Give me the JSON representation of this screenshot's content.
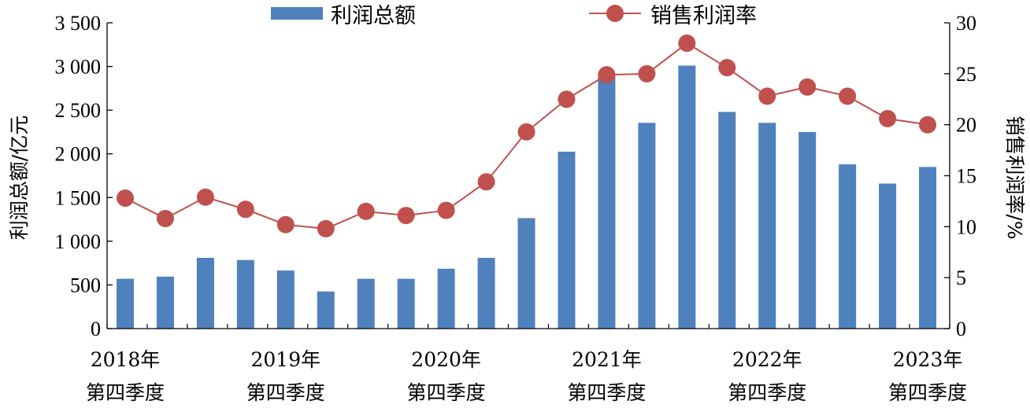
{
  "chart_data": {
    "type": "bar",
    "legend": {
      "placement": "top-center"
    },
    "ylabel_left": "利润总额/亿元",
    "ylabel_right": "销售利润率/%",
    "ylim_left": [
      0,
      3500
    ],
    "yticks_left": [
      "0",
      "500",
      "1 000",
      "1 500",
      "2 000",
      "2 500",
      "3 000",
      "3 500"
    ],
    "ylim_right": [
      0,
      30
    ],
    "yticks_right": [
      "0",
      "5",
      "10",
      "15",
      "20",
      "25",
      "30"
    ],
    "categories": [
      "2018年第四季度",
      "",
      "",
      "",
      "2019年第四季度",
      "",
      "",
      "",
      "2020年第四季度",
      "",
      "",
      "",
      "2021年第四季度",
      "",
      "",
      "",
      "2022年第四季度",
      "",
      "",
      "",
      "2023年第四季度"
    ],
    "x_tick_labels": [
      {
        "index": 0,
        "line1": "2018年",
        "line2": "第四季度"
      },
      {
        "index": 4,
        "line1": "2019年",
        "line2": "第四季度"
      },
      {
        "index": 8,
        "line1": "2020年",
        "line2": "第四季度"
      },
      {
        "index": 12,
        "line1": "2021年",
        "line2": "第四季度"
      },
      {
        "index": 16,
        "line1": "2022年",
        "line2": "第四季度"
      },
      {
        "index": 20,
        "line1": "2023年",
        "line2": "第四季度"
      }
    ],
    "series": [
      {
        "name": "利润总额",
        "type": "bar",
        "axis": "left",
        "color": "#4f81bd",
        "values": [
          570,
          595,
          810,
          785,
          665,
          425,
          570,
          570,
          685,
          810,
          1265,
          2025,
          2900,
          2355,
          3010,
          2480,
          2355,
          2250,
          1880,
          1660,
          1850
        ]
      },
      {
        "name": "销售利润率",
        "type": "line",
        "axis": "right",
        "color": "#c0504d",
        "values": [
          12.8,
          10.8,
          12.9,
          11.7,
          10.2,
          9.8,
          11.5,
          11.1,
          11.6,
          14.4,
          19.3,
          22.5,
          24.9,
          25.0,
          28.0,
          25.6,
          22.8,
          23.7,
          22.8,
          20.6,
          20.0
        ]
      }
    ]
  }
}
